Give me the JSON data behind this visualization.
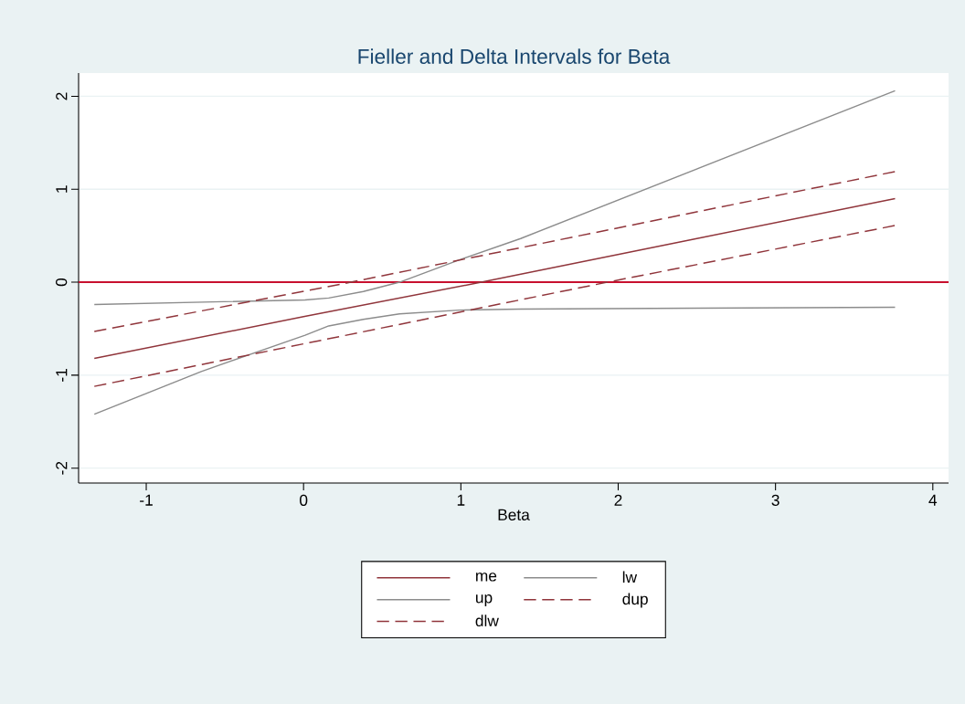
{
  "chart_data": {
    "type": "line",
    "title": "Fieller and Delta Intervals for Beta",
    "xlabel": "Beta",
    "xlim": [
      -1.43,
      4.1
    ],
    "ylim": [
      -2.16,
      2.25
    ],
    "xticks": [
      -1,
      0,
      1,
      2,
      3,
      4
    ],
    "yticks": [
      -2,
      -1,
      0,
      1,
      2
    ],
    "grid": "y",
    "legend": "bottom",
    "ref_lines": [
      {
        "axis": "y",
        "value": 0,
        "color": "#c8102e"
      }
    ],
    "series": [
      {
        "name": "me",
        "color": "#90353b",
        "line_style": "solid",
        "x": [
          -1.33,
          0,
          1.13,
          2.5,
          3.76
        ],
        "values": [
          -0.82,
          -0.37,
          0.0,
          0.47,
          0.9
        ]
      },
      {
        "name": "lw",
        "color": "#8c8c8c",
        "line_style": "solid",
        "x": [
          -1.33,
          -0.65,
          0.01,
          0.16,
          0.38,
          0.61,
          0.99,
          1.38,
          2.5,
          3.76
        ],
        "values": [
          -1.42,
          -0.96,
          -0.57,
          -0.47,
          -0.4,
          -0.34,
          -0.3,
          -0.29,
          -0.28,
          -0.27
        ]
      },
      {
        "name": "up",
        "color": "#8c8c8c",
        "line_style": "solid",
        "x": [
          -1.33,
          0.01,
          0.16,
          0.38,
          0.61,
          0.99,
          1.38,
          3.76
        ],
        "values": [
          -0.24,
          -0.19,
          -0.17,
          -0.1,
          0.0,
          0.24,
          0.47,
          2.06
        ]
      },
      {
        "name": "dup",
        "color": "#90353b",
        "line_style": "dashed",
        "x": [
          -1.33,
          0.3,
          3.76
        ],
        "values": [
          -0.53,
          0.0,
          1.19
        ]
      },
      {
        "name": "dlw",
        "color": "#90353b",
        "line_style": "dashed",
        "x": [
          -1.33,
          1.93,
          3.76
        ],
        "values": [
          -1.12,
          0.0,
          0.61
        ]
      }
    ]
  }
}
